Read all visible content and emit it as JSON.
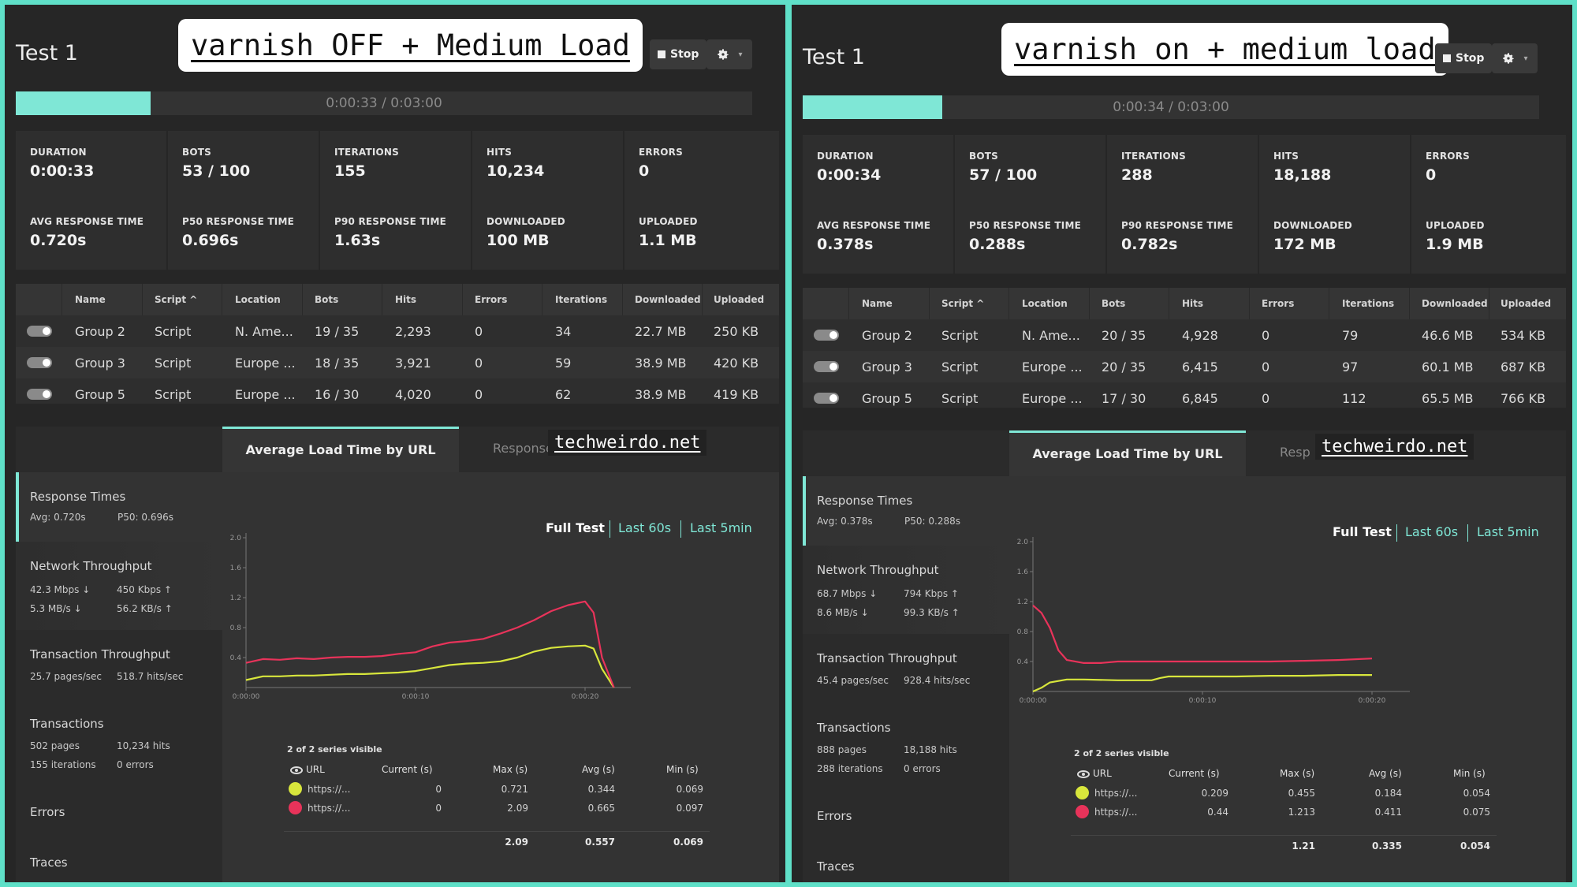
{
  "colors": {
    "accent": "#7fe7d6",
    "series1": "#d8e63c",
    "series2": "#e8335a",
    "frame": "#5fe0c8"
  },
  "panels": [
    {
      "title": "Test 1",
      "annotation": "varnish OFF + Medium Load",
      "stop_label": "Stop",
      "progress_text": "0:00:33 / 0:03:00",
      "progress_fraction": 0.183,
      "stats": [
        {
          "label": "DURATION",
          "value": "0:00:33"
        },
        {
          "label": "BOTS",
          "value": "53 / 100"
        },
        {
          "label": "ITERATIONS",
          "value": "155"
        },
        {
          "label": "HITS",
          "value": "10,234"
        },
        {
          "label": "ERRORS",
          "value": "0"
        },
        {
          "label": "AVG RESPONSE TIME",
          "value": "0.720s"
        },
        {
          "label": "P50 RESPONSE TIME",
          "value": "0.696s"
        },
        {
          "label": "P90 RESPONSE TIME",
          "value": "1.63s"
        },
        {
          "label": "DOWNLOADED",
          "value": "100 MB"
        },
        {
          "label": "UPLOADED",
          "value": "1.1 MB"
        }
      ],
      "table_headers": [
        "Name",
        "Script ^",
        "Location",
        "Bots",
        "Hits",
        "Errors",
        "Iterations",
        "Downloaded",
        "Uploaded"
      ],
      "rows": [
        [
          "Group 2",
          "Script",
          "N. Ame...",
          "19 / 35",
          "2,293",
          "0",
          "34",
          "22.7 MB",
          "250 KB"
        ],
        [
          "Group 3",
          "Script",
          "Europe ...",
          "18 / 35",
          "3,921",
          "0",
          "59",
          "38.9 MB",
          "420 KB"
        ],
        [
          "Group 5",
          "Script",
          "Europe ...",
          "16 / 30",
          "4,020",
          "0",
          "62",
          "38.9 MB",
          "419 KB"
        ]
      ],
      "tab_active": "Average Load Time by URL",
      "tab_other": "Response",
      "watermark": "techweirdo.net",
      "sidebar": {
        "response_times": {
          "title": "Response Times",
          "avg": "Avg: 0.720s",
          "p50": "P50: 0.696s"
        },
        "network": {
          "title": "Network Throughput",
          "a": "42.3 Mbps ↓",
          "b": "450 Kbps ↑",
          "c": "5.3 MB/s ↓",
          "d": "56.2 KB/s ↑"
        },
        "transaction": {
          "title": "Transaction Throughput",
          "a": "25.7 pages/sec",
          "b": "518.7 hits/sec"
        },
        "transactions": {
          "title": "Transactions",
          "a": "502 pages",
          "b": "10,234 hits",
          "c": "155 iterations",
          "d": "0 errors"
        },
        "errors": "Errors",
        "traces": "Traces"
      },
      "ranges": [
        "Full Test",
        "Last 60s",
        "Last 5min"
      ],
      "series_visible": "2 of 2 series visible",
      "legend_headers": [
        "URL",
        "Current (s)",
        "Max (s)",
        "Avg (s)",
        "Min (s)"
      ],
      "legend_rows": [
        [
          "https://...",
          "0",
          "0.721",
          "0.344",
          "0.069"
        ],
        [
          "https://...",
          "0",
          "2.09",
          "0.665",
          "0.097"
        ]
      ],
      "legend_totals": [
        "2.09",
        "0.557",
        "0.069"
      ],
      "chart_data": {
        "type": "line",
        "ylim": [
          0,
          2.0
        ],
        "y_ticks": [
          "2.0",
          "1.6",
          "1.2",
          "0.8",
          "0.4"
        ],
        "x_ticks": [
          "0:00:00",
          "0:00:10",
          "0:00:20"
        ],
        "series": [
          {
            "values": [
              [
                0,
                0.1
              ],
              [
                1,
                0.15
              ],
              [
                2,
                0.15
              ],
              [
                3,
                0.16
              ],
              [
                4,
                0.16
              ],
              [
                5,
                0.17
              ],
              [
                6,
                0.18
              ],
              [
                7,
                0.18
              ],
              [
                8,
                0.19
              ],
              [
                9,
                0.2
              ],
              [
                10,
                0.22
              ],
              [
                11,
                0.26
              ],
              [
                12,
                0.3
              ],
              [
                13,
                0.32
              ],
              [
                14,
                0.33
              ],
              [
                15,
                0.35
              ],
              [
                16,
                0.4
              ],
              [
                17,
                0.48
              ],
              [
                18,
                0.53
              ],
              [
                19,
                0.55
              ],
              [
                20,
                0.56
              ],
              [
                20.5,
                0.52
              ],
              [
                21,
                0.25
              ],
              [
                21.7,
                0.0
              ]
            ]
          },
          {
            "values": [
              [
                0,
                0.33
              ],
              [
                1,
                0.38
              ],
              [
                2,
                0.37
              ],
              [
                3,
                0.39
              ],
              [
                4,
                0.38
              ],
              [
                5,
                0.4
              ],
              [
                6,
                0.41
              ],
              [
                7,
                0.41
              ],
              [
                8,
                0.42
              ],
              [
                9,
                0.45
              ],
              [
                10,
                0.47
              ],
              [
                11,
                0.55
              ],
              [
                12,
                0.6
              ],
              [
                13,
                0.62
              ],
              [
                14,
                0.65
              ],
              [
                15,
                0.72
              ],
              [
                16,
                0.8
              ],
              [
                17,
                0.9
              ],
              [
                18,
                1.02
              ],
              [
                19,
                1.1
              ],
              [
                20,
                1.15
              ],
              [
                20.5,
                1.0
              ],
              [
                21,
                0.4
              ],
              [
                21.7,
                0.0
              ]
            ]
          }
        ]
      }
    },
    {
      "title": "Test 1",
      "annotation": "varnish on + medium load",
      "stop_label": "Stop",
      "progress_text": "0:00:34 / 0:03:00",
      "progress_fraction": 0.189,
      "stats": [
        {
          "label": "DURATION",
          "value": "0:00:34"
        },
        {
          "label": "BOTS",
          "value": "57 / 100"
        },
        {
          "label": "ITERATIONS",
          "value": "288"
        },
        {
          "label": "HITS",
          "value": "18,188"
        },
        {
          "label": "ERRORS",
          "value": "0"
        },
        {
          "label": "AVG RESPONSE TIME",
          "value": "0.378s"
        },
        {
          "label": "P50 RESPONSE TIME",
          "value": "0.288s"
        },
        {
          "label": "P90 RESPONSE TIME",
          "value": "0.782s"
        },
        {
          "label": "DOWNLOADED",
          "value": "172 MB"
        },
        {
          "label": "UPLOADED",
          "value": "1.9 MB"
        }
      ],
      "table_headers": [
        "Name",
        "Script ^",
        "Location",
        "Bots",
        "Hits",
        "Errors",
        "Iterations",
        "Downloaded",
        "Uploaded"
      ],
      "rows": [
        [
          "Group 2",
          "Script",
          "N. Ame...",
          "20 / 35",
          "4,928",
          "0",
          "79",
          "46.6 MB",
          "534 KB"
        ],
        [
          "Group 3",
          "Script",
          "Europe ...",
          "20 / 35",
          "6,415",
          "0",
          "97",
          "60.1 MB",
          "687 KB"
        ],
        [
          "Group 5",
          "Script",
          "Europe ...",
          "17 / 30",
          "6,845",
          "0",
          "112",
          "65.5 MB",
          "766 KB"
        ]
      ],
      "tab_active": "Average Load Time by URL",
      "tab_other": "Resp",
      "watermark": "techweirdo.net",
      "sidebar": {
        "response_times": {
          "title": "Response Times",
          "avg": "Avg: 0.378s",
          "p50": "P50: 0.288s"
        },
        "network": {
          "title": "Network Throughput",
          "a": "68.7 Mbps ↓",
          "b": "794 Kbps ↑",
          "c": "8.6 MB/s ↓",
          "d": "99.3 KB/s ↑"
        },
        "transaction": {
          "title": "Transaction Throughput",
          "a": "45.4 pages/sec",
          "b": "928.4 hits/sec"
        },
        "transactions": {
          "title": "Transactions",
          "a": "888 pages",
          "b": "18,188 hits",
          "c": "288 iterations",
          "d": "0 errors"
        },
        "errors": "Errors",
        "traces": "Traces"
      },
      "ranges": [
        "Full Test",
        "Last 60s",
        "Last 5min"
      ],
      "series_visible": "2 of 2 series visible",
      "legend_headers": [
        "URL",
        "Current (s)",
        "Max (s)",
        "Avg (s)",
        "Min (s)"
      ],
      "legend_rows": [
        [
          "https://...",
          "0.209",
          "0.455",
          "0.184",
          "0.054"
        ],
        [
          "https://...",
          "0.44",
          "1.213",
          "0.411",
          "0.075"
        ]
      ],
      "legend_totals": [
        "1.21",
        "0.335",
        "0.054"
      ],
      "chart_data": {
        "type": "line",
        "ylim": [
          0,
          2.0
        ],
        "y_ticks": [
          "2.0",
          "1.6",
          "1.2",
          "0.8",
          "0.4"
        ],
        "x_ticks": [
          "0:00:00",
          "0:00:10",
          "0:00:20"
        ],
        "series": [
          {
            "values": [
              [
                0,
                0.0
              ],
              [
                0.5,
                0.05
              ],
              [
                1,
                0.12
              ],
              [
                2,
                0.16
              ],
              [
                3,
                0.16
              ],
              [
                5,
                0.15
              ],
              [
                7,
                0.15
              ],
              [
                7.5,
                0.18
              ],
              [
                8,
                0.2
              ],
              [
                10,
                0.2
              ],
              [
                12,
                0.2
              ],
              [
                14,
                0.21
              ],
              [
                16,
                0.21
              ],
              [
                18,
                0.22
              ],
              [
                20,
                0.22
              ]
            ]
          },
          {
            "values": [
              [
                0,
                1.15
              ],
              [
                0.5,
                1.05
              ],
              [
                1,
                0.85
              ],
              [
                1.5,
                0.55
              ],
              [
                2,
                0.42
              ],
              [
                3,
                0.38
              ],
              [
                4,
                0.38
              ],
              [
                5,
                0.4
              ],
              [
                6,
                0.4
              ],
              [
                8,
                0.4
              ],
              [
                10,
                0.4
              ],
              [
                12,
                0.4
              ],
              [
                14,
                0.4
              ],
              [
                16,
                0.41
              ],
              [
                18,
                0.42
              ],
              [
                20,
                0.44
              ]
            ]
          }
        ]
      }
    }
  ]
}
